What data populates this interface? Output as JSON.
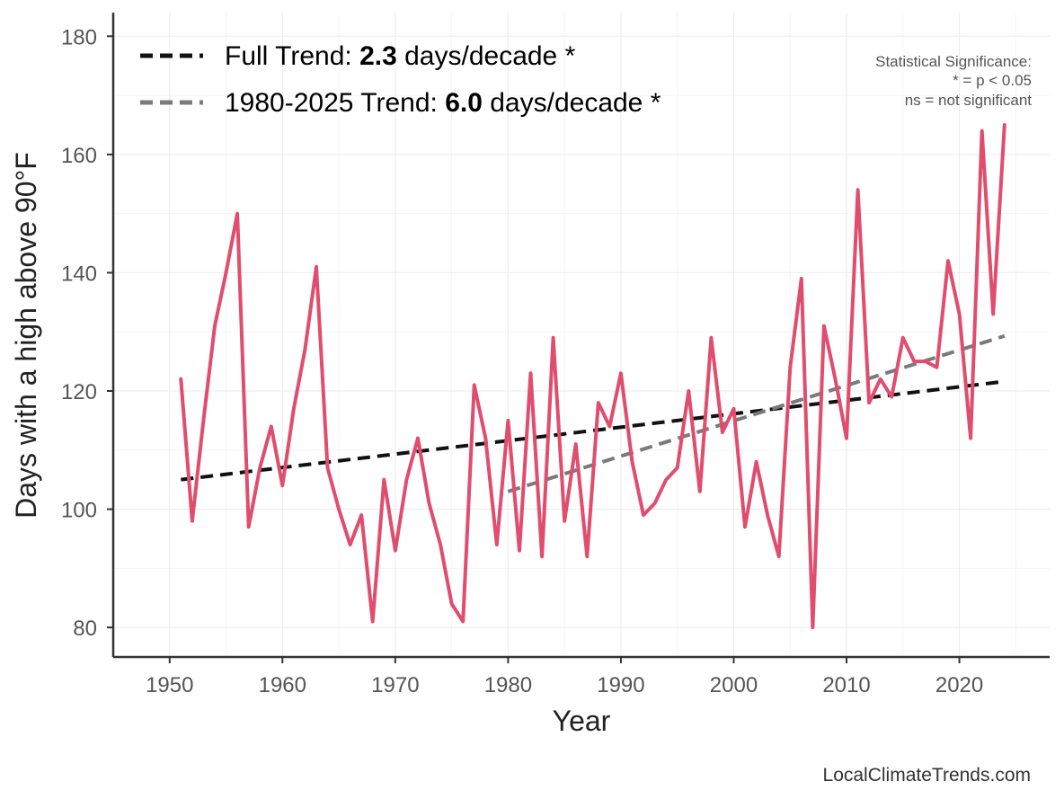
{
  "chart_data": {
    "type": "line",
    "xlabel": "Year",
    "ylabel": "Days with a high above 90°F",
    "xlim": [
      1945,
      2028
    ],
    "ylim": [
      75,
      184
    ],
    "xticks": [
      1950,
      1960,
      1970,
      1980,
      1990,
      2000,
      2010,
      2020
    ],
    "yticks": [
      80,
      100,
      120,
      140,
      160,
      180
    ],
    "grid": true,
    "series": [
      {
        "name": "Days with a high above 90°F",
        "color": "#e04d6d",
        "x": [
          1951,
          1952,
          1953,
          1954,
          1955,
          1956,
          1957,
          1958,
          1959,
          1960,
          1961,
          1962,
          1963,
          1964,
          1965,
          1966,
          1967,
          1968,
          1969,
          1970,
          1971,
          1972,
          1973,
          1974,
          1975,
          1976,
          1977,
          1978,
          1979,
          1980,
          1981,
          1982,
          1983,
          1984,
          1985,
          1986,
          1987,
          1988,
          1989,
          1990,
          1991,
          1992,
          1993,
          1994,
          1995,
          1996,
          1997,
          1998,
          1999,
          2000,
          2001,
          2002,
          2003,
          2004,
          2005,
          2006,
          2007,
          2008,
          2009,
          2010,
          2011,
          2012,
          2013,
          2014,
          2015,
          2016,
          2017,
          2018,
          2019,
          2020,
          2021,
          2022,
          2023,
          2024
        ],
        "values": [
          122,
          98,
          115,
          131,
          140,
          150,
          97,
          107,
          114,
          104,
          117,
          127,
          141,
          107,
          100,
          94,
          99,
          81,
          105,
          93,
          105,
          112,
          101,
          94,
          84,
          81,
          121,
          112,
          94,
          115,
          93,
          123,
          92,
          129,
          98,
          111,
          92,
          118,
          114,
          123,
          108,
          99,
          101,
          105,
          107,
          120,
          103,
          129,
          113,
          117,
          97,
          108,
          99,
          92,
          124,
          139,
          80,
          131,
          122,
          112,
          154,
          118,
          122,
          119,
          129,
          125,
          125,
          124,
          142,
          133,
          112,
          164,
          133,
          165
        ]
      }
    ],
    "trends": [
      {
        "name": "Full Trend",
        "color": "#111111",
        "x": [
          1951,
          2024
        ],
        "y": [
          105,
          121.6
        ]
      },
      {
        "name": "1980-2025 Trend",
        "color": "#7a7a7a",
        "x": [
          1980,
          2024
        ],
        "y": [
          103,
          129.3
        ]
      }
    ],
    "legend": {
      "position": "top-left",
      "entries": [
        {
          "prefix": "Full Trend: ",
          "value": "2.3",
          "suffix": " days/decade *",
          "color": "#111111"
        },
        {
          "prefix": "1980-2025 Trend: ",
          "value": "6.0",
          "suffix": " days/decade *",
          "color": "#7a7a7a"
        }
      ]
    },
    "significance_note": [
      "Statistical Significance:",
      "* = p < 0.05",
      "ns = not significant"
    ],
    "caption": "LocalClimateTrends.com"
  }
}
